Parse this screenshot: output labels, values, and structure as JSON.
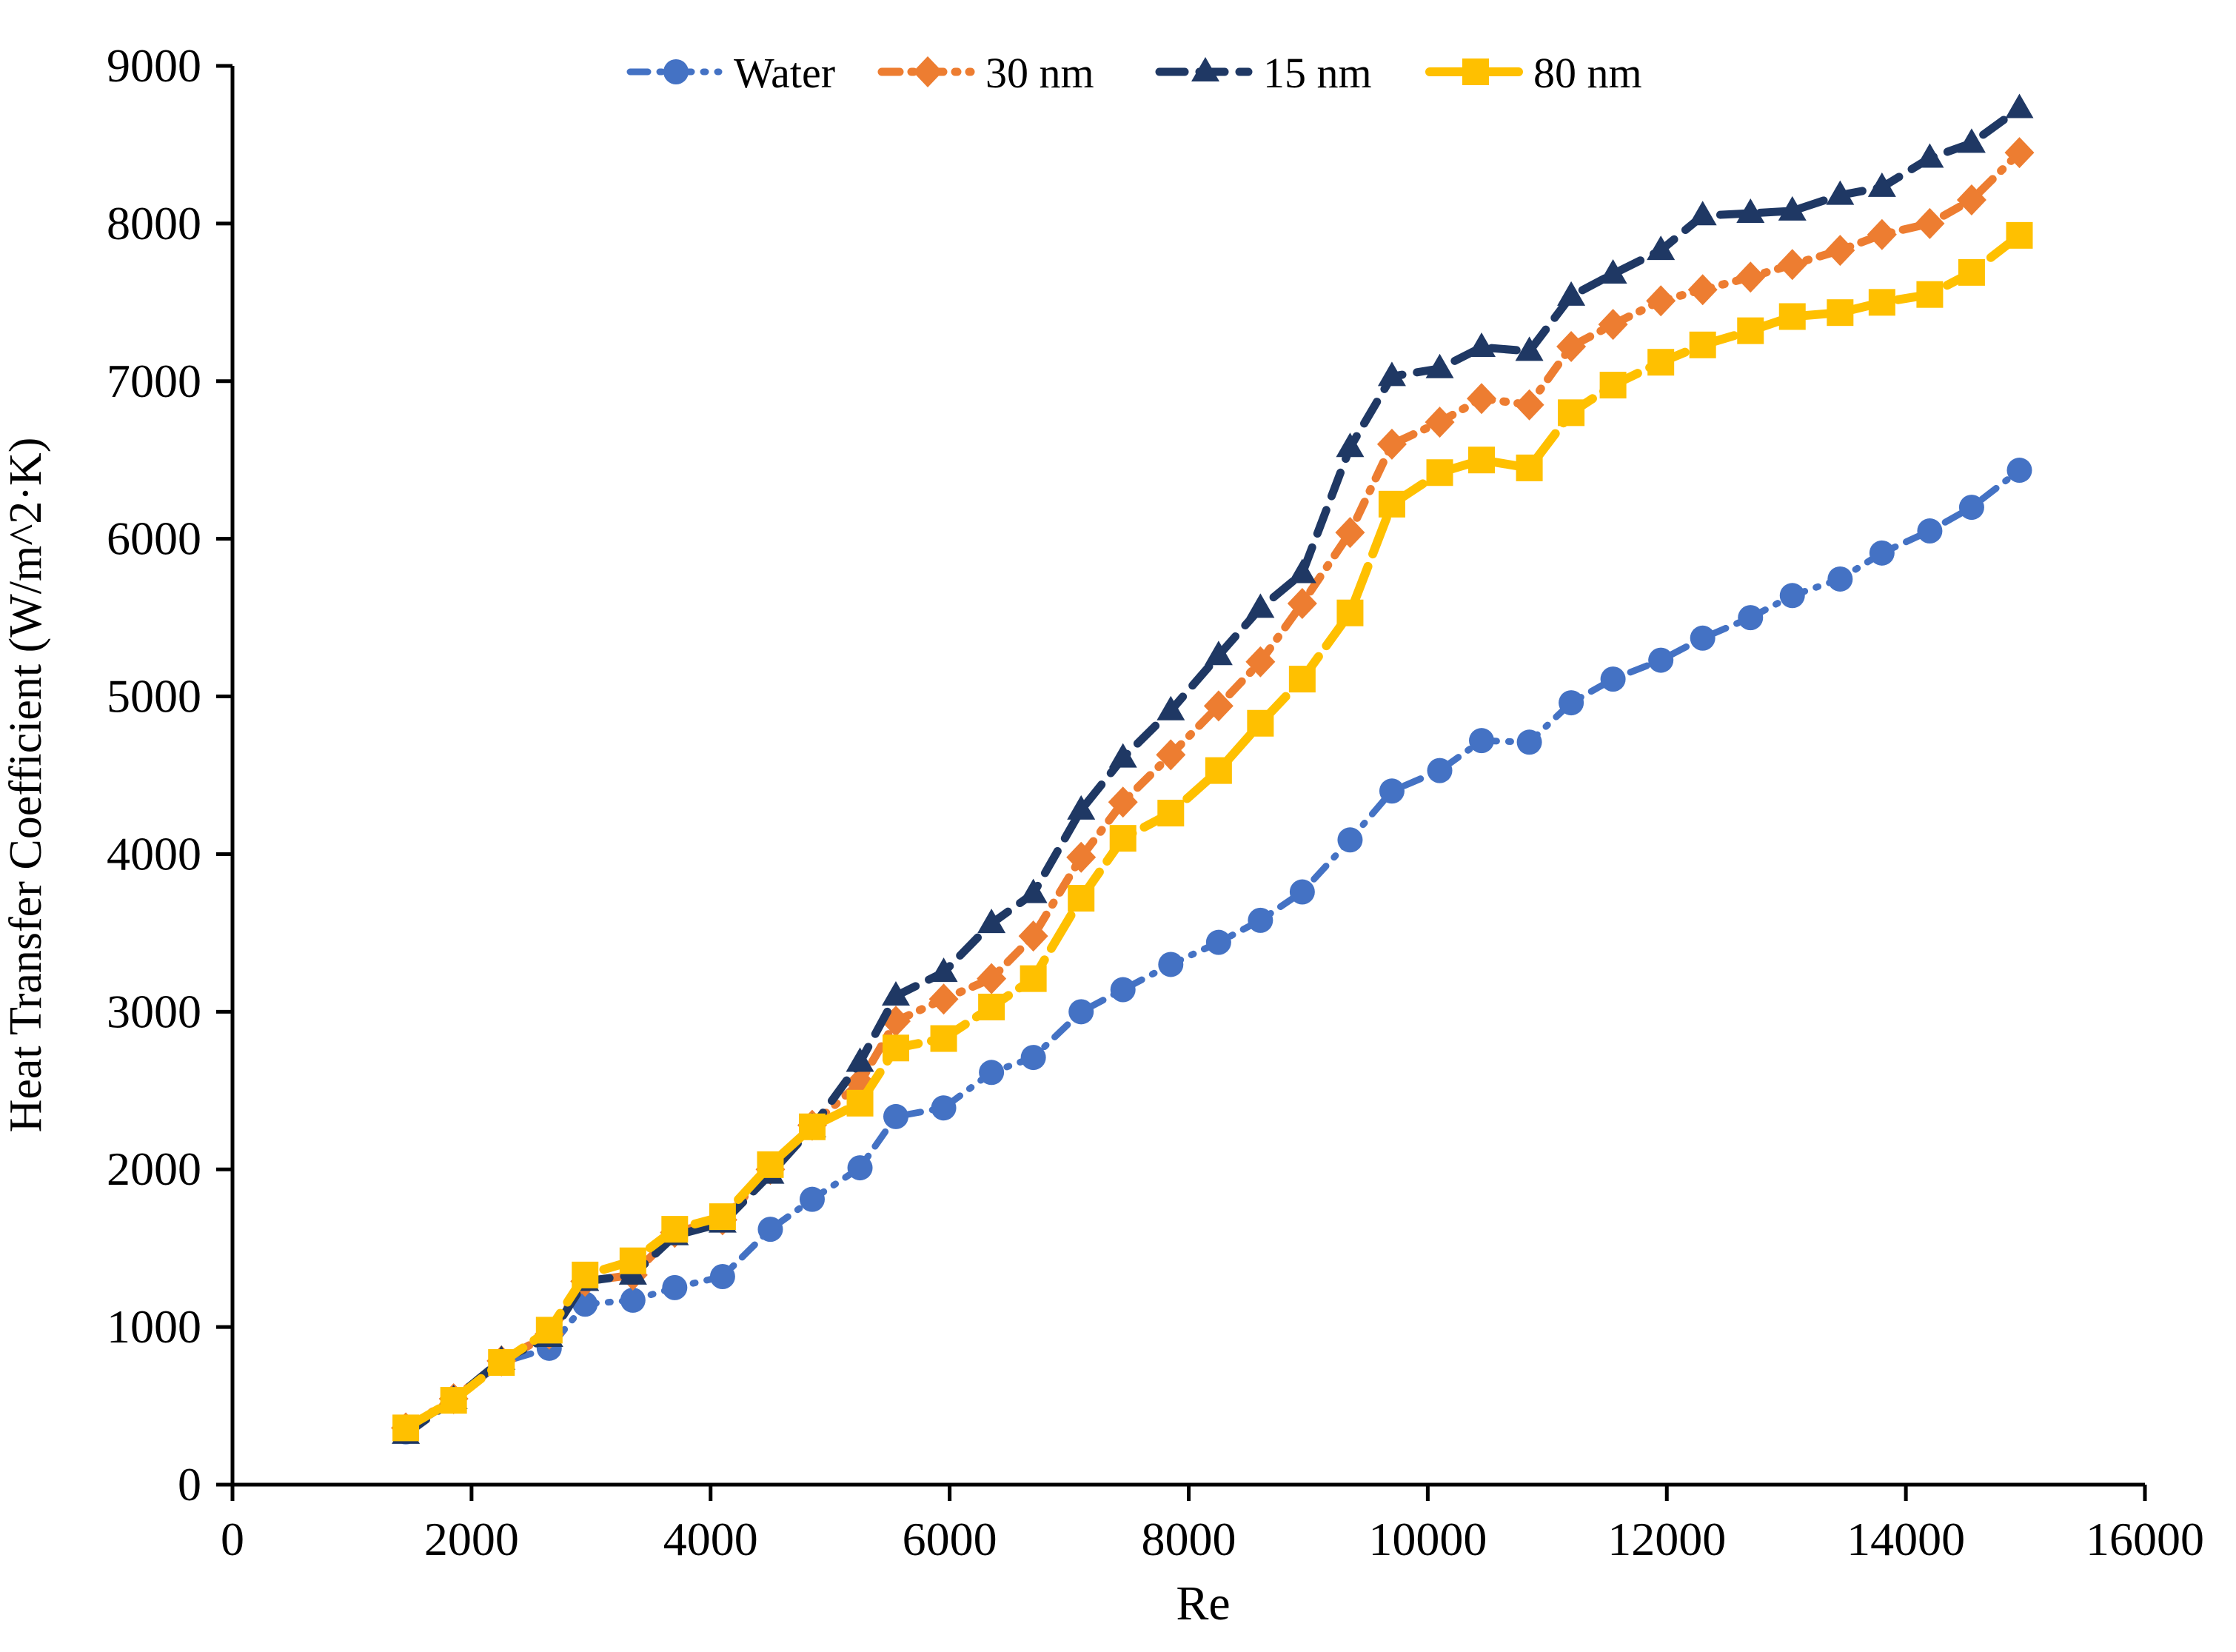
{
  "chart_data": {
    "type": "line",
    "title": "",
    "xlabel": "Re",
    "ylabel": "Heat Transfer Coefficient (W/m^2·K)",
    "xlim": [
      0,
      16000
    ],
    "ylim": [
      0,
      9000
    ],
    "grid": false,
    "legend_position": "top",
    "x_ticks": [
      0,
      2000,
      4000,
      6000,
      8000,
      10000,
      12000,
      14000,
      16000
    ],
    "y_ticks": [
      0,
      1000,
      2000,
      3000,
      4000,
      5000,
      6000,
      7000,
      8000,
      9000
    ],
    "x": [
      1450,
      1850,
      2250,
      2650,
      2950,
      3350,
      3700,
      4100,
      4500,
      4850,
      5250,
      5550,
      5950,
      6350,
      6700,
      7100,
      7450,
      7850,
      8250,
      8600,
      8950,
      9350,
      9700,
      10100,
      10450,
      10850,
      11200,
      11550,
      11950,
      12300,
      12700,
      13050,
      13450,
      13800,
      14200,
      14550,
      14950
    ],
    "series": [
      {
        "name": "Water",
        "color": "#4472C4",
        "marker": "circle",
        "line_style": "dash-dot",
        "values": [
          335,
          540,
          775,
          865,
          1145,
          1170,
          1250,
          1320,
          1620,
          1810,
          2010,
          2335,
          2390,
          2615,
          2710,
          3000,
          3140,
          3300,
          3440,
          3580,
          3760,
          4090,
          4400,
          4530,
          4720,
          4710,
          4960,
          5110,
          5230,
          5370,
          5500,
          5640,
          5745,
          5910,
          6050,
          6200,
          6435
        ]
      },
      {
        "name": "30 nm",
        "color": "#ED7D31",
        "marker": "diamond",
        "line_style": "dash-dot",
        "values": [
          360,
          545,
          785,
          955,
          1290,
          1330,
          1600,
          1680,
          2000,
          2280,
          2550,
          2940,
          3080,
          3210,
          3480,
          3980,
          4330,
          4630,
          4940,
          5220,
          5590,
          6040,
          6600,
          6740,
          6890,
          6850,
          7220,
          7360,
          7510,
          7580,
          7660,
          7740,
          7830,
          7930,
          8000,
          8150,
          8450
        ]
      },
      {
        "name": "15 nm",
        "color": "#1F3864",
        "marker": "triangle",
        "line_style": "dash",
        "values": [
          320,
          540,
          790,
          935,
          1290,
          1330,
          1580,
          1660,
          1970,
          2265,
          2680,
          3100,
          3250,
          3560,
          3750,
          4280,
          4610,
          4910,
          5260,
          5560,
          5780,
          6580,
          7030,
          7080,
          7215,
          7190,
          7540,
          7680,
          7830,
          8050,
          8065,
          8080,
          8180,
          8230,
          8415,
          8510,
          8730
        ]
      },
      {
        "name": "80 nm",
        "color": "#FFC000",
        "marker": "square",
        "line_style": "long-dash",
        "values": [
          360,
          535,
          775,
          980,
          1330,
          1420,
          1620,
          1700,
          2030,
          2270,
          2420,
          2770,
          2830,
          3030,
          3210,
          3720,
          4100,
          4260,
          4530,
          4830,
          5110,
          5530,
          6220,
          6420,
          6500,
          6450,
          6800,
          6975,
          7120,
          7230,
          7320,
          7410,
          7435,
          7500,
          7550,
          7690,
          7925
        ]
      }
    ]
  }
}
